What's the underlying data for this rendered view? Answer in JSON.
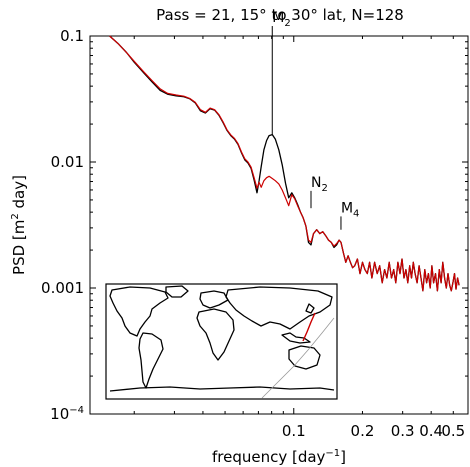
{
  "chart_data": {
    "type": "line",
    "title": "Pass = 21, 15° to 30° lat, N=128",
    "xlabel": {
      "main": "frequency [day",
      "sup": "−1",
      "close": "]"
    },
    "ylabel": {
      "main": "PSD [m",
      "sup": "2",
      "rest": " day]"
    },
    "xscale": "log",
    "yscale": "log",
    "xlim": [
      0.0128,
      0.58
    ],
    "ylim": [
      0.0001,
      0.1
    ],
    "xticks": [
      {
        "value": 0.1,
        "label": "0.1"
      },
      {
        "value": 0.2,
        "label": "0.2"
      },
      {
        "value": 0.3,
        "label": "0.3"
      },
      {
        "value": 0.4,
        "label": "0.4"
      },
      {
        "value": 0.5,
        "label": "0.5"
      }
    ],
    "yticks": [
      {
        "value": 0.1,
        "label": "0.1"
      },
      {
        "value": 0.01,
        "label": "0.01"
      },
      {
        "value": 0.001,
        "label": "0.001"
      },
      {
        "value": 0.0001,
        "label": "10",
        "sup": "−4"
      }
    ],
    "annotations": [
      {
        "label": "M",
        "sub": "2",
        "x": 0.0805,
        "y": 0.0165,
        "y_text": 0.12
      },
      {
        "label": "N",
        "sub": "2",
        "x": 0.119,
        "y": 0.0043,
        "y_text": 0.0059
      },
      {
        "label": "M",
        "sub": "4",
        "x": 0.161,
        "y": 0.0029,
        "y_text": 0.0037
      }
    ],
    "series": [
      {
        "color": "#000000",
        "points": [
          [
            0.0156,
            0.1
          ],
          [
            0.017,
            0.087
          ],
          [
            0.0185,
            0.074
          ],
          [
            0.02,
            0.062
          ],
          [
            0.022,
            0.051
          ],
          [
            0.024,
            0.043
          ],
          [
            0.026,
            0.037
          ],
          [
            0.028,
            0.0345
          ],
          [
            0.0305,
            0.0335
          ],
          [
            0.033,
            0.033
          ],
          [
            0.035,
            0.0318
          ],
          [
            0.037,
            0.0295
          ],
          [
            0.039,
            0.0255
          ],
          [
            0.041,
            0.0245
          ],
          [
            0.043,
            0.0265
          ],
          [
            0.045,
            0.0258
          ],
          [
            0.047,
            0.0235
          ],
          [
            0.049,
            0.0205
          ],
          [
            0.051,
            0.0178
          ],
          [
            0.053,
            0.0162
          ],
          [
            0.055,
            0.0152
          ],
          [
            0.057,
            0.0138
          ],
          [
            0.059,
            0.0118
          ],
          [
            0.061,
            0.0104
          ],
          [
            0.063,
            0.0098
          ],
          [
            0.065,
            0.0089
          ],
          [
            0.067,
            0.0072
          ],
          [
            0.069,
            0.0057
          ],
          [
            0.0705,
            0.0071
          ],
          [
            0.072,
            0.0092
          ],
          [
            0.074,
            0.0125
          ],
          [
            0.076,
            0.0148
          ],
          [
            0.078,
            0.0162
          ],
          [
            0.0805,
            0.0165
          ],
          [
            0.083,
            0.0152
          ],
          [
            0.086,
            0.0125
          ],
          [
            0.089,
            0.0095
          ],
          [
            0.092,
            0.0068
          ],
          [
            0.095,
            0.0052
          ],
          [
            0.098,
            0.0057
          ],
          [
            0.101,
            0.0052
          ],
          [
            0.104,
            0.0046
          ],
          [
            0.107,
            0.004
          ],
          [
            0.11,
            0.0036
          ],
          [
            0.113,
            0.0031
          ],
          [
            0.116,
            0.0023
          ],
          [
            0.119,
            0.0022
          ],
          [
            0.122,
            0.0027
          ],
          [
            0.126,
            0.0029
          ],
          [
            0.13,
            0.0027
          ],
          [
            0.134,
            0.0028
          ],
          [
            0.138,
            0.0026
          ],
          [
            0.142,
            0.0024
          ],
          [
            0.146,
            0.0023
          ],
          [
            0.15,
            0.0021
          ],
          [
            0.154,
            0.0022
          ],
          [
            0.158,
            0.0024
          ],
          [
            0.161,
            0.0023
          ],
          [
            0.165,
            0.0019
          ],
          [
            0.169,
            0.0016
          ],
          [
            0.173,
            0.0018
          ],
          [
            0.177,
            0.0016
          ],
          [
            0.181,
            0.00145
          ],
          [
            0.185,
            0.0015
          ],
          [
            0.19,
            0.0017
          ],
          [
            0.195,
            0.0013
          ],
          [
            0.2,
            0.0016
          ],
          [
            0.205,
            0.0014
          ],
          [
            0.21,
            0.0013
          ],
          [
            0.215,
            0.0016
          ],
          [
            0.22,
            0.0012
          ],
          [
            0.226,
            0.0016
          ],
          [
            0.232,
            0.0013
          ],
          [
            0.238,
            0.0015
          ],
          [
            0.244,
            0.0011
          ],
          [
            0.25,
            0.0014
          ],
          [
            0.256,
            0.0012
          ],
          [
            0.262,
            0.0016
          ],
          [
            0.268,
            0.0012
          ],
          [
            0.274,
            0.0014
          ],
          [
            0.28,
            0.0011
          ],
          [
            0.286,
            0.0016
          ],
          [
            0.292,
            0.0013
          ],
          [
            0.298,
            0.0017
          ],
          [
            0.304,
            0.0012
          ],
          [
            0.31,
            0.0014
          ],
          [
            0.316,
            0.0011
          ],
          [
            0.322,
            0.0015
          ],
          [
            0.328,
            0.0012
          ],
          [
            0.334,
            0.0016
          ],
          [
            0.34,
            0.0013
          ],
          [
            0.347,
            0.0011
          ],
          [
            0.354,
            0.0015
          ],
          [
            0.361,
            0.0012
          ],
          [
            0.368,
            0.00095
          ],
          [
            0.375,
            0.0014
          ],
          [
            0.382,
            0.0011
          ],
          [
            0.389,
            0.0013
          ],
          [
            0.396,
            0.001
          ],
          [
            0.403,
            0.0015
          ],
          [
            0.41,
            0.0011
          ],
          [
            0.418,
            0.0013
          ],
          [
            0.426,
            0.00095
          ],
          [
            0.434,
            0.0014
          ],
          [
            0.442,
            0.0011
          ],
          [
            0.45,
            0.0016
          ],
          [
            0.458,
            0.0012
          ],
          [
            0.466,
            0.001
          ],
          [
            0.474,
            0.0013
          ],
          [
            0.482,
            0.00105
          ],
          [
            0.49,
            0.00095
          ],
          [
            0.498,
            0.0011
          ],
          [
            0.506,
            0.0013
          ],
          [
            0.514,
            0.00098
          ],
          [
            0.522,
            0.0012
          ],
          [
            0.53,
            0.00105
          ]
        ]
      },
      {
        "color": "#cc0000",
        "points": [
          [
            0.0156,
            0.1
          ],
          [
            0.017,
            0.087
          ],
          [
            0.0185,
            0.074
          ],
          [
            0.02,
            0.063
          ],
          [
            0.022,
            0.052
          ],
          [
            0.024,
            0.044
          ],
          [
            0.026,
            0.038
          ],
          [
            0.028,
            0.035
          ],
          [
            0.0305,
            0.034
          ],
          [
            0.033,
            0.0333
          ],
          [
            0.035,
            0.032
          ],
          [
            0.037,
            0.0298
          ],
          [
            0.039,
            0.026
          ],
          [
            0.041,
            0.0248
          ],
          [
            0.043,
            0.0268
          ],
          [
            0.045,
            0.026
          ],
          [
            0.047,
            0.0238
          ],
          [
            0.049,
            0.0208
          ],
          [
            0.051,
            0.018
          ],
          [
            0.053,
            0.0164
          ],
          [
            0.055,
            0.0154
          ],
          [
            0.057,
            0.014
          ],
          [
            0.059,
            0.012
          ],
          [
            0.061,
            0.0106
          ],
          [
            0.063,
            0.01
          ],
          [
            0.065,
            0.0091
          ],
          [
            0.067,
            0.0075
          ],
          [
            0.069,
            0.0062
          ],
          [
            0.0705,
            0.0069
          ],
          [
            0.072,
            0.0063
          ],
          [
            0.074,
            0.0071
          ],
          [
            0.076,
            0.0075
          ],
          [
            0.078,
            0.0077
          ],
          [
            0.0805,
            0.0074
          ],
          [
            0.083,
            0.0071
          ],
          [
            0.086,
            0.0067
          ],
          [
            0.089,
            0.006
          ],
          [
            0.092,
            0.0052
          ],
          [
            0.095,
            0.0045
          ],
          [
            0.098,
            0.0055
          ],
          [
            0.101,
            0.0051
          ],
          [
            0.104,
            0.0045
          ],
          [
            0.107,
            0.004
          ],
          [
            0.11,
            0.0036
          ],
          [
            0.113,
            0.0031
          ],
          [
            0.116,
            0.0024
          ],
          [
            0.119,
            0.0023
          ],
          [
            0.122,
            0.0027
          ],
          [
            0.126,
            0.0029
          ],
          [
            0.13,
            0.0027
          ],
          [
            0.134,
            0.0028
          ],
          [
            0.138,
            0.0026
          ],
          [
            0.142,
            0.0024
          ],
          [
            0.146,
            0.0023
          ],
          [
            0.15,
            0.00215
          ],
          [
            0.154,
            0.00225
          ],
          [
            0.158,
            0.0024
          ],
          [
            0.161,
            0.0023
          ],
          [
            0.165,
            0.0019
          ],
          [
            0.169,
            0.0016
          ],
          [
            0.173,
            0.0018
          ],
          [
            0.177,
            0.0016
          ],
          [
            0.181,
            0.00145
          ],
          [
            0.185,
            0.0015
          ],
          [
            0.19,
            0.0017
          ],
          [
            0.195,
            0.0013
          ],
          [
            0.2,
            0.0016
          ],
          [
            0.205,
            0.0014
          ],
          [
            0.21,
            0.0013
          ],
          [
            0.215,
            0.0016
          ],
          [
            0.22,
            0.0012
          ],
          [
            0.226,
            0.0016
          ],
          [
            0.232,
            0.0013
          ],
          [
            0.238,
            0.0015
          ],
          [
            0.244,
            0.0011
          ],
          [
            0.25,
            0.0014
          ],
          [
            0.256,
            0.0012
          ],
          [
            0.262,
            0.0016
          ],
          [
            0.268,
            0.0012
          ],
          [
            0.274,
            0.0014
          ],
          [
            0.28,
            0.0011
          ],
          [
            0.286,
            0.0016
          ],
          [
            0.292,
            0.0013
          ],
          [
            0.298,
            0.0017
          ],
          [
            0.304,
            0.0012
          ],
          [
            0.31,
            0.0014
          ],
          [
            0.316,
            0.0011
          ],
          [
            0.322,
            0.0015
          ],
          [
            0.328,
            0.0012
          ],
          [
            0.334,
            0.0016
          ],
          [
            0.34,
            0.0013
          ],
          [
            0.347,
            0.0011
          ],
          [
            0.354,
            0.0015
          ],
          [
            0.361,
            0.0012
          ],
          [
            0.368,
            0.00095
          ],
          [
            0.375,
            0.0014
          ],
          [
            0.382,
            0.0011
          ],
          [
            0.389,
            0.0013
          ],
          [
            0.396,
            0.001
          ],
          [
            0.403,
            0.0015
          ],
          [
            0.41,
            0.0011
          ],
          [
            0.418,
            0.0013
          ],
          [
            0.426,
            0.00095
          ],
          [
            0.434,
            0.0014
          ],
          [
            0.442,
            0.0011
          ],
          [
            0.45,
            0.0016
          ],
          [
            0.458,
            0.0012
          ],
          [
            0.466,
            0.001
          ],
          [
            0.474,
            0.0013
          ],
          [
            0.482,
            0.00105
          ],
          [
            0.49,
            0.00095
          ],
          [
            0.498,
            0.0011
          ],
          [
            0.506,
            0.0013
          ],
          [
            0.514,
            0.00098
          ],
          [
            0.522,
            0.0012
          ],
          [
            0.53,
            0.00105
          ]
        ]
      }
    ],
    "grid": false,
    "legend": "none"
  },
  "inset_map": {
    "content": "world-map-coastlines",
    "track_color": "#cc0000"
  }
}
